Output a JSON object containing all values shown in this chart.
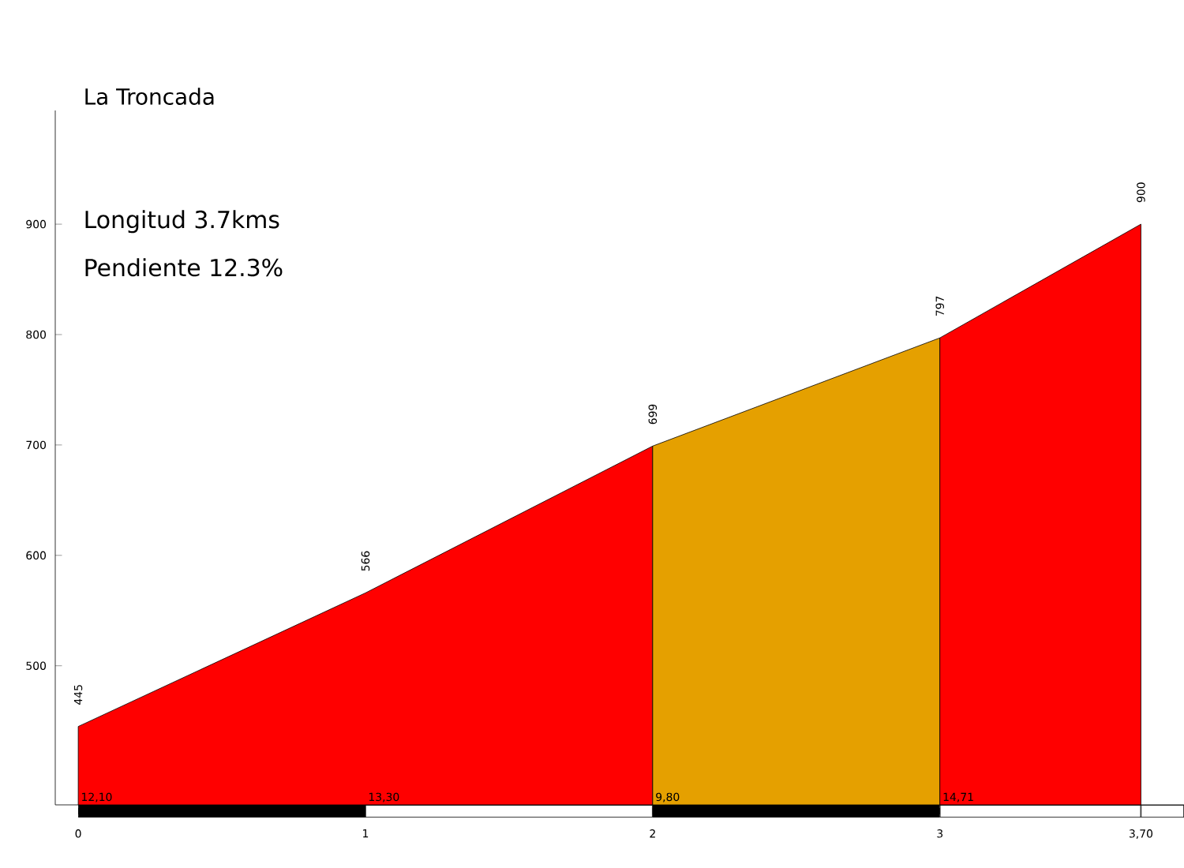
{
  "chart_data": {
    "type": "area",
    "title": "La Troncada",
    "series": [
      {
        "x": [
          0,
          1,
          2
        ],
        "values": [
          445,
          566,
          699
        ],
        "color": "#ff0000",
        "value_labels": [
          "445",
          "566",
          "699"
        ]
      },
      {
        "x": [
          2,
          3
        ],
        "values": [
          699,
          797
        ],
        "color": "#e5a000",
        "value_labels": [
          null,
          "797"
        ]
      },
      {
        "x": [
          3,
          3.7
        ],
        "values": [
          797,
          900
        ],
        "color": "#ff0000",
        "value_labels": [
          null,
          "900"
        ]
      }
    ],
    "xlim": [
      -0.08,
      3.85
    ],
    "ylim": [
      374,
      1003
    ],
    "xticks": [
      0,
      1,
      2,
      3,
      {
        "value": 3.7,
        "label": "3,70"
      }
    ],
    "yticks": [
      500,
      600,
      700,
      800,
      900
    ],
    "annotations": [
      "Longitud 3.7kms",
      "Pendiente 12.3%",
      {
        "text": "12,10",
        "x": 0,
        "y": 374
      },
      {
        "text": "13,30",
        "x": 1,
        "y": 374
      },
      {
        "text": "9,80",
        "x": 2,
        "y": 374
      },
      {
        "text": "14,71",
        "x": 3,
        "y": 374
      }
    ]
  }
}
